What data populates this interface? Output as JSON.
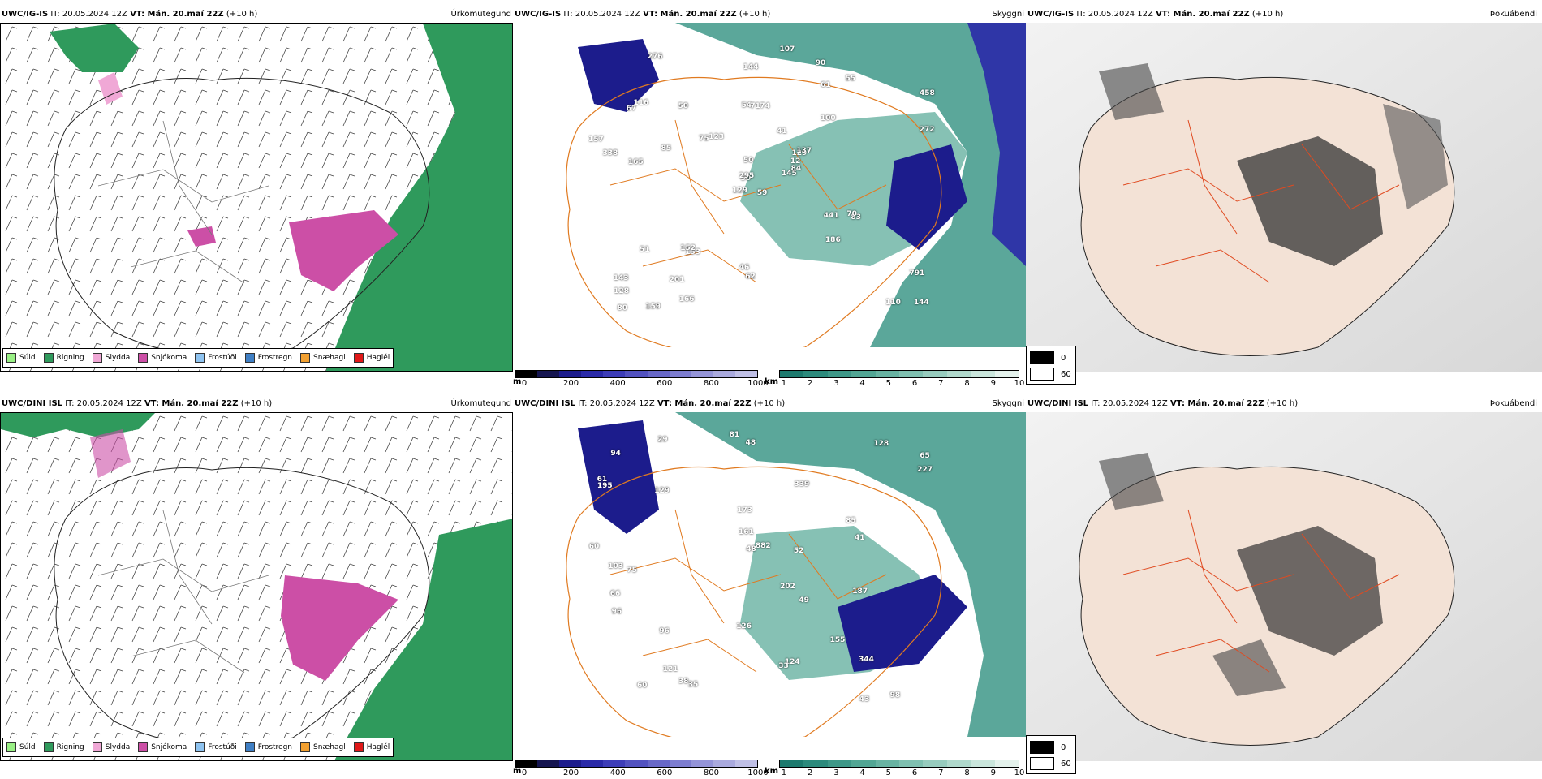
{
  "rows": [
    {
      "model": "UWC/IG-IS",
      "it": "IT: 20.05.2024 12Z",
      "vt": "VT: Mán. 20.maí 22Z",
      "lead": "(+10 h)",
      "vis_labels": [
        "59",
        "67",
        "50",
        "143",
        "129",
        "153",
        "90",
        "74",
        "61",
        "145",
        "276",
        "144",
        "165",
        "458",
        "129",
        "100",
        "159",
        "54",
        "41",
        "51",
        "123",
        "128",
        "201",
        "71",
        "137",
        "83",
        "116",
        "144",
        "338",
        "441",
        "272",
        "295",
        "46",
        "50",
        "50",
        "55",
        "152",
        "110",
        "791",
        "70",
        "107",
        "75",
        "85",
        "186",
        "166",
        "157",
        "12",
        "80",
        "62",
        "84"
      ]
    },
    {
      "model": "UWC/DINI ISL",
      "it": "IT: 20.05.2024 12Z",
      "vt": "VT: Mán. 20.maí 22Z",
      "lead": "(+10 h)",
      "vis_labels": [
        "60",
        "48",
        "85",
        "65",
        "61",
        "98",
        "75",
        "339",
        "173",
        "128",
        "882",
        "187",
        "81",
        "195",
        "129",
        "96",
        "124",
        "103",
        "202",
        "126",
        "155",
        "344",
        "227",
        "161",
        "121",
        "48",
        "49",
        "29",
        "35",
        "33",
        "66",
        "43",
        "52",
        "60",
        "38",
        "96",
        "41",
        "94"
      ]
    }
  ],
  "panel_titles": {
    "precip": "Úrkomutegund",
    "visibility": "Skyggni",
    "fog": "Þokuábendi"
  },
  "precip_legend": [
    {
      "label": "Súld",
      "color": "#99f085"
    },
    {
      "label": "Rigning",
      "color": "#2f9a5c"
    },
    {
      "label": "Slydda",
      "color": "#f0a8d6"
    },
    {
      "label": "Snjókoma",
      "color": "#cc4fa6"
    },
    {
      "label": "Frostúði",
      "color": "#8ec3f0"
    },
    {
      "label": "Frostregn",
      "color": "#3f7fc4"
    },
    {
      "label": "Snæhagl",
      "color": "#f2a030"
    },
    {
      "label": "Haglél",
      "color": "#e01818"
    }
  ],
  "ceiling_scale": {
    "unit": "m",
    "ticks": [
      "0",
      "200",
      "400",
      "600",
      "800",
      "1000"
    ],
    "colors": [
      "#000000",
      "#151550",
      "#1c1c8c",
      "#2a2aa8",
      "#3d3db8",
      "#5252c0",
      "#6868c8",
      "#7d7dd0",
      "#9494d8",
      "#aaaade",
      "#c0c0e6"
    ]
  },
  "vis_scale": {
    "unit": "km",
    "ticks": [
      "1",
      "2",
      "3",
      "4",
      "5",
      "6",
      "7",
      "8",
      "9",
      "10"
    ],
    "colors": [
      "#1d7a6e",
      "#2c8a7c",
      "#3e9888",
      "#52a694",
      "#68b3a2",
      "#7fc0b0",
      "#97ccbe",
      "#b0d9cc",
      "#cae6dc",
      "#e4f2ec"
    ]
  },
  "fog_key": {
    "dark": "0",
    "light": "60"
  }
}
